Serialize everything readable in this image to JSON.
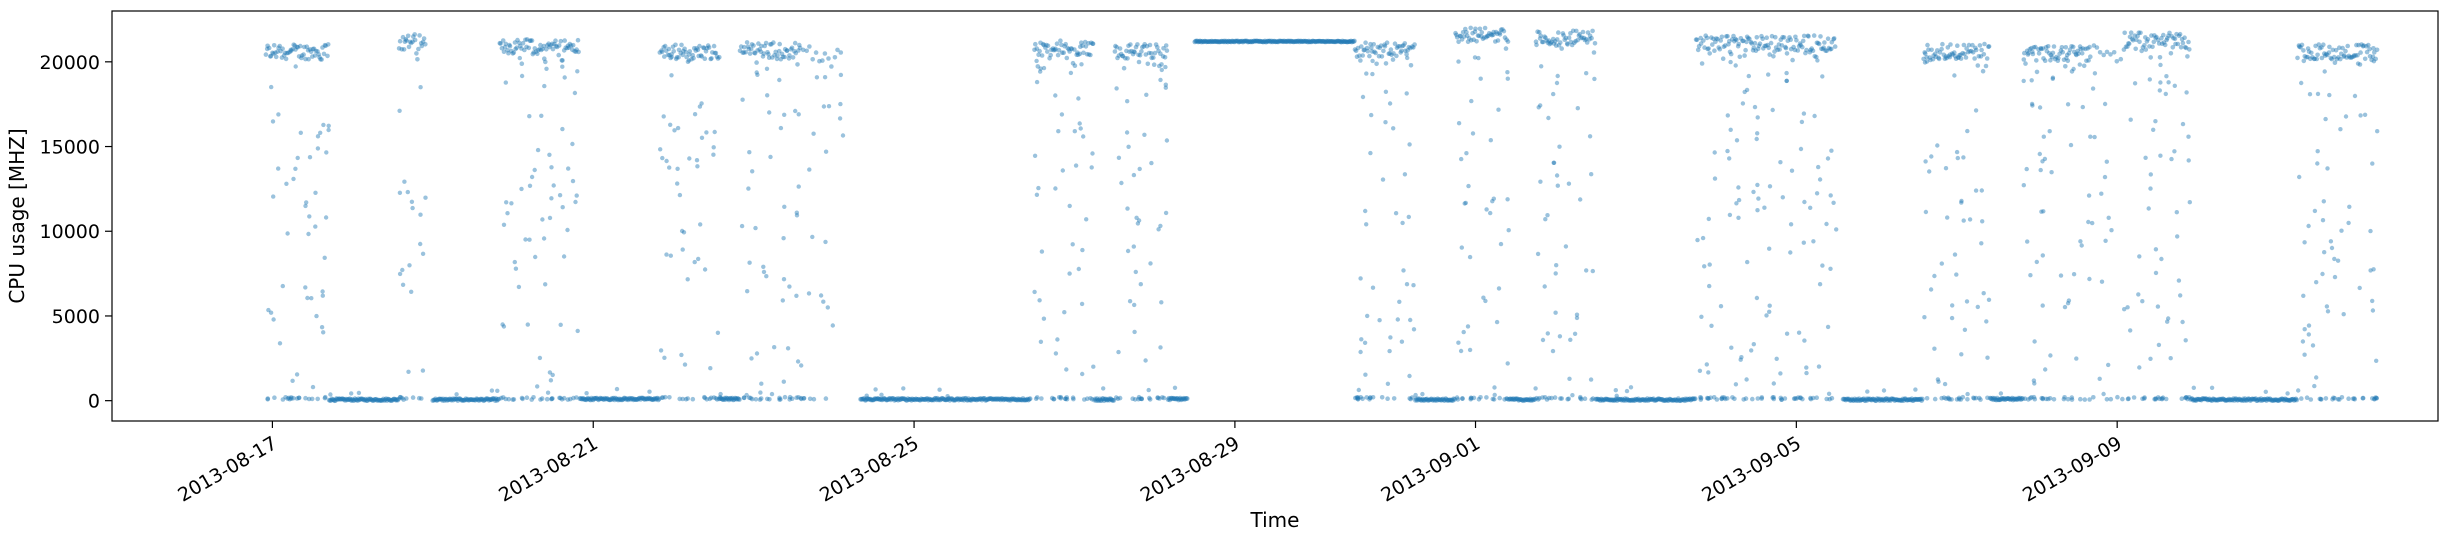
{
  "chart_data": {
    "type": "scatter",
    "xlabel": "Time",
    "ylabel": "CPU usage [MHZ]",
    "xlim": [
      "2013-08-15",
      "2013-09-13"
    ],
    "ylim": [
      -1200,
      23000
    ],
    "x_ticks": [
      "2013-08-17",
      "2013-08-21",
      "2013-08-25",
      "2013-08-29",
      "2013-09-01",
      "2013-09-05",
      "2013-09-09"
    ],
    "y_ticks": [
      0,
      5000,
      10000,
      15000,
      20000
    ],
    "point_color": "#1f77b4",
    "point_opacity": 0.45,
    "grid": false,
    "segments": [
      {
        "start": "2013-08-16T22:00",
        "end": "2013-08-17T17:00",
        "mode": "high",
        "level": 20600
      },
      {
        "start": "2013-08-17T17:00",
        "end": "2013-08-18T14:00",
        "mode": "idle",
        "level": 60
      },
      {
        "start": "2013-08-18T14:00",
        "end": "2013-08-18T22:00",
        "mode": "high",
        "level": 21200
      },
      {
        "start": "2013-08-19T00:00",
        "end": "2013-08-19T20:00",
        "mode": "idle",
        "level": 60
      },
      {
        "start": "2013-08-19T20:00",
        "end": "2013-08-20T20:00",
        "mode": "high",
        "level": 20900
      },
      {
        "start": "2013-08-20T20:00",
        "end": "2013-08-21T20:00",
        "mode": "idle",
        "level": 100
      },
      {
        "start": "2013-08-21T20:00",
        "end": "2013-08-22T14:00",
        "mode": "high",
        "level": 20600
      },
      {
        "start": "2013-08-22T14:00",
        "end": "2013-08-22T20:00",
        "mode": "idle",
        "level": 100
      },
      {
        "start": "2013-08-22T20:00",
        "end": "2013-08-23T14:00",
        "mode": "high",
        "level": 20700
      },
      {
        "start": "2013-08-23T14:00",
        "end": "2013-08-24T03:00",
        "mode": "sparse",
        "level": 20500
      },
      {
        "start": "2013-08-24T08:00",
        "end": "2013-08-26T11:00",
        "mode": "idle",
        "level": 80
      },
      {
        "start": "2013-08-26T12:00",
        "end": "2013-08-27T06:00",
        "mode": "high",
        "level": 20800
      },
      {
        "start": "2013-08-27T06:00",
        "end": "2013-08-27T12:00",
        "mode": "idle",
        "level": 60
      },
      {
        "start": "2013-08-27T12:00",
        "end": "2013-08-28T04:00",
        "mode": "high",
        "level": 20600
      },
      {
        "start": "2013-08-28T04:00",
        "end": "2013-08-28T10:00",
        "mode": "idle",
        "level": 100
      },
      {
        "start": "2013-08-28T12:00",
        "end": "2013-08-30T12:00",
        "mode": "flat",
        "level": 21200
      },
      {
        "start": "2013-08-30T12:00",
        "end": "2013-08-31T06:00",
        "mode": "high",
        "level": 20700
      },
      {
        "start": "2013-08-31T06:00",
        "end": "2013-08-31T18:00",
        "mode": "idle",
        "level": 60
      },
      {
        "start": "2013-08-31T18:00",
        "end": "2013-09-01T10:00",
        "mode": "high",
        "level": 21600
      },
      {
        "start": "2013-09-01T10:00",
        "end": "2013-09-01T18:00",
        "mode": "idle",
        "level": 60
      },
      {
        "start": "2013-09-01T18:00",
        "end": "2013-09-02T12:00",
        "mode": "high",
        "level": 21400
      },
      {
        "start": "2013-09-02T12:00",
        "end": "2013-09-03T18:00",
        "mode": "idle",
        "level": 60
      },
      {
        "start": "2013-09-03T18:00",
        "end": "2013-09-05T12:00",
        "mode": "high",
        "level": 21100
      },
      {
        "start": "2013-09-05T14:00",
        "end": "2013-09-06T14:00",
        "mode": "idle",
        "level": 60
      },
      {
        "start": "2013-09-06T14:00",
        "end": "2013-09-07T10:00",
        "mode": "high",
        "level": 20600
      },
      {
        "start": "2013-09-07T10:00",
        "end": "2013-09-07T20:00",
        "mode": "idle",
        "level": 100
      },
      {
        "start": "2013-09-07T20:00",
        "end": "2013-09-08T16:00",
        "mode": "high",
        "level": 20500
      },
      {
        "start": "2013-09-08T16:00",
        "end": "2013-09-09T02:00",
        "mode": "sparse",
        "level": 20600
      },
      {
        "start": "2013-09-09T02:00",
        "end": "2013-09-09T22:00",
        "mode": "high",
        "level": 21300
      },
      {
        "start": "2013-09-09T22:00",
        "end": "2013-09-11T06:00",
        "mode": "idle",
        "level": 60
      },
      {
        "start": "2013-09-11T06:00",
        "end": "2013-09-12T06:00",
        "mode": "high",
        "level": 20600
      }
    ]
  }
}
